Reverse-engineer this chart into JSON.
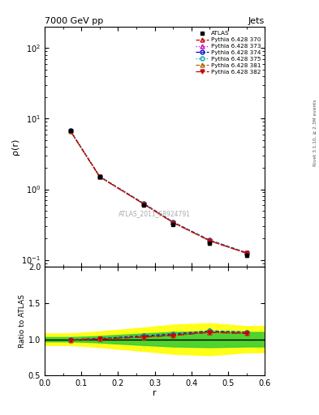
{
  "title": "7000 GeV pp",
  "title_right": "Jets",
  "xlabel": "r",
  "ylabel_main": "ρ(r)",
  "ylabel_ratio": "Ratio to ATLAS",
  "watermark": "ATLAS_2011_S8924791",
  "right_label": "Rivet 3.1.10, ≥ 2.3M events",
  "r_values": [
    0.07,
    0.15,
    0.27,
    0.35,
    0.45,
    0.55
  ],
  "atlas_y": [
    6.8,
    1.5,
    0.6,
    0.32,
    0.17,
    0.115
  ],
  "atlas_yerr": [
    0.15,
    0.04,
    0.015,
    0.012,
    0.007,
    0.006
  ],
  "mc_lines": [
    {
      "label": "Pythia 6.428 370",
      "color": "#cc0000",
      "linestyle": "--",
      "marker": "^",
      "markerfacecolor": "none",
      "ratio": [
        0.995,
        1.005,
        1.038,
        1.06,
        1.1,
        1.08
      ]
    },
    {
      "label": "Pythia 6.428 373",
      "color": "#cc00cc",
      "linestyle": ":",
      "marker": "^",
      "markerfacecolor": "none",
      "ratio": [
        0.995,
        1.008,
        1.042,
        1.068,
        1.1,
        1.09
      ]
    },
    {
      "label": "Pythia 6.428 374",
      "color": "#0000cc",
      "linestyle": "--",
      "marker": "o",
      "markerfacecolor": "none",
      "ratio": [
        0.995,
        1.01,
        1.048,
        1.072,
        1.115,
        1.1
      ]
    },
    {
      "label": "Pythia 6.428 375",
      "color": "#00aaaa",
      "linestyle": ":",
      "marker": "o",
      "markerfacecolor": "none",
      "ratio": [
        0.995,
        1.01,
        1.048,
        1.072,
        1.115,
        1.1
      ]
    },
    {
      "label": "Pythia 6.428 381",
      "color": "#aa6600",
      "linestyle": "--",
      "marker": "^",
      "markerfacecolor": "none",
      "ratio": [
        0.988,
        1.002,
        1.03,
        1.052,
        1.095,
        1.08
      ]
    },
    {
      "label": "Pythia 6.428 382",
      "color": "#cc0000",
      "linestyle": "-.",
      "marker": "v",
      "markerfacecolor": "#cc0000",
      "ratio": [
        0.988,
        1.002,
        1.03,
        1.052,
        1.095,
        1.08
      ]
    }
  ],
  "green_band_x": [
    0.0,
    0.07,
    0.13,
    0.2,
    0.27,
    0.35,
    0.45,
    0.55,
    0.6
  ],
  "green_band_lo": [
    0.97,
    0.97,
    0.96,
    0.94,
    0.92,
    0.9,
    0.89,
    0.9,
    0.9
  ],
  "green_band_hi": [
    1.03,
    1.03,
    1.04,
    1.06,
    1.08,
    1.1,
    1.11,
    1.1,
    1.1
  ],
  "yellow_band_x": [
    0.0,
    0.07,
    0.13,
    0.2,
    0.27,
    0.35,
    0.45,
    0.55,
    0.6
  ],
  "yellow_band_lo": [
    0.92,
    0.92,
    0.9,
    0.87,
    0.84,
    0.8,
    0.78,
    0.82,
    0.82
  ],
  "yellow_band_hi": [
    1.08,
    1.08,
    1.1,
    1.13,
    1.16,
    1.2,
    1.22,
    1.18,
    1.18
  ],
  "xlim": [
    0.0,
    0.6
  ],
  "ylim_main_log": [
    0.08,
    200
  ],
  "ylim_ratio": [
    0.5,
    2.0
  ],
  "ratio_yticks": [
    0.5,
    1.0,
    1.5,
    2.0
  ],
  "main_xticks": [
    0.0,
    0.1,
    0.2,
    0.3,
    0.4,
    0.5,
    0.6
  ],
  "background_color": "#ffffff"
}
